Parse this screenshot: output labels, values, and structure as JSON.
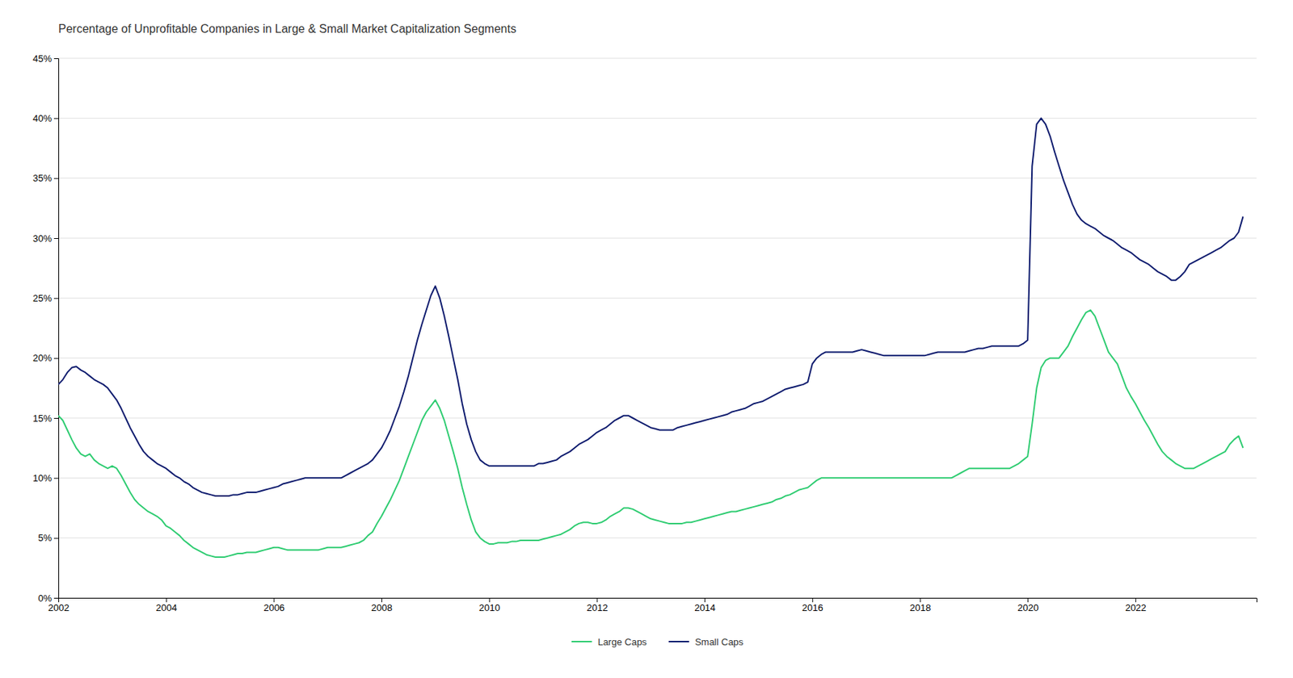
{
  "chart_data": {
    "type": "line",
    "title": "Percentage of Unprofitable Companies in Large & Small Market Capitalization Segments",
    "xlim": [
      2002.0,
      2024.25
    ],
    "xticks": [
      2002,
      2004,
      2006,
      2008,
      2010,
      2012,
      2014,
      2016,
      2018,
      2020,
      2022
    ],
    "ylim": [
      0,
      0.45
    ],
    "yticks": [
      {
        "value": 0,
        "label": "0%"
      },
      {
        "value": 0.05,
        "label": "5%"
      },
      {
        "value": 0.1,
        "label": "10%"
      },
      {
        "value": 0.15,
        "label": "15%"
      },
      {
        "value": 0.2,
        "label": "20%"
      },
      {
        "value": 0.25,
        "label": "25%"
      },
      {
        "value": 0.3,
        "label": "30%"
      },
      {
        "value": 0.35,
        "label": "35%"
      },
      {
        "value": 0.4,
        "label": "40%"
      },
      {
        "value": 0.45,
        "label": "45%"
      }
    ],
    "grid": true,
    "legend": "bottom",
    "x": [
      2002.0,
      2002.083,
      2002.167,
      2002.25,
      2002.333,
      2002.417,
      2002.5,
      2002.583,
      2002.667,
      2002.75,
      2002.833,
      2002.917,
      2003.0,
      2003.083,
      2003.167,
      2003.25,
      2003.333,
      2003.417,
      2003.5,
      2003.583,
      2003.667,
      2003.75,
      2003.833,
      2003.917,
      2004.0,
      2004.083,
      2004.167,
      2004.25,
      2004.333,
      2004.417,
      2004.5,
      2004.583,
      2004.667,
      2004.75,
      2004.833,
      2004.917,
      2005.0,
      2005.083,
      2005.167,
      2005.25,
      2005.333,
      2005.417,
      2005.5,
      2005.583,
      2005.667,
      2005.75,
      2005.833,
      2005.917,
      2006.0,
      2006.083,
      2006.167,
      2006.25,
      2006.333,
      2006.417,
      2006.5,
      2006.583,
      2006.667,
      2006.75,
      2006.833,
      2006.917,
      2007.0,
      2007.083,
      2007.167,
      2007.25,
      2007.333,
      2007.417,
      2007.5,
      2007.583,
      2007.667,
      2007.75,
      2007.833,
      2007.917,
      2008.0,
      2008.083,
      2008.167,
      2008.25,
      2008.333,
      2008.417,
      2008.5,
      2008.583,
      2008.667,
      2008.75,
      2008.833,
      2008.917,
      2009.0,
      2009.083,
      2009.167,
      2009.25,
      2009.333,
      2009.417,
      2009.5,
      2009.583,
      2009.667,
      2009.75,
      2009.833,
      2009.917,
      2010.0,
      2010.083,
      2010.167,
      2010.25,
      2010.333,
      2010.417,
      2010.5,
      2010.583,
      2010.667,
      2010.75,
      2010.833,
      2010.917,
      2011.0,
      2011.083,
      2011.167,
      2011.25,
      2011.333,
      2011.417,
      2011.5,
      2011.583,
      2011.667,
      2011.75,
      2011.833,
      2011.917,
      2012.0,
      2012.083,
      2012.167,
      2012.25,
      2012.333,
      2012.417,
      2012.5,
      2012.583,
      2012.667,
      2012.75,
      2012.833,
      2012.917,
      2013.0,
      2013.083,
      2013.167,
      2013.25,
      2013.333,
      2013.417,
      2013.5,
      2013.583,
      2013.667,
      2013.75,
      2013.833,
      2013.917,
      2014.0,
      2014.083,
      2014.167,
      2014.25,
      2014.333,
      2014.417,
      2014.5,
      2014.583,
      2014.667,
      2014.75,
      2014.833,
      2014.917,
      2015.0,
      2015.083,
      2015.167,
      2015.25,
      2015.333,
      2015.417,
      2015.5,
      2015.583,
      2015.667,
      2015.75,
      2015.833,
      2015.917,
      2016.0,
      2016.083,
      2016.167,
      2016.25,
      2016.333,
      2016.417,
      2016.5,
      2016.583,
      2016.667,
      2016.75,
      2016.833,
      2016.917,
      2017.0,
      2017.083,
      2017.167,
      2017.25,
      2017.333,
      2017.417,
      2017.5,
      2017.583,
      2017.667,
      2017.75,
      2017.833,
      2017.917,
      2018.0,
      2018.083,
      2018.167,
      2018.25,
      2018.333,
      2018.417,
      2018.5,
      2018.583,
      2018.667,
      2018.75,
      2018.833,
      2018.917,
      2019.0,
      2019.083,
      2019.167,
      2019.25,
      2019.333,
      2019.417,
      2019.5,
      2019.583,
      2019.667,
      2019.75,
      2019.833,
      2019.917,
      2020.0,
      2020.083,
      2020.167,
      2020.25,
      2020.333,
      2020.417,
      2020.5,
      2020.583,
      2020.667,
      2020.75,
      2020.833,
      2020.917,
      2021.0,
      2021.083,
      2021.167,
      2021.25,
      2021.333,
      2021.417,
      2021.5,
      2021.583,
      2021.667,
      2021.75,
      2021.833,
      2021.917,
      2022.0,
      2022.083,
      2022.167,
      2022.25,
      2022.333,
      2022.417,
      2022.5,
      2022.583,
      2022.667,
      2022.75,
      2022.833,
      2022.917,
      2023.0,
      2023.083,
      2023.167,
      2023.25,
      2023.333,
      2023.417,
      2023.5,
      2023.583,
      2023.667,
      2023.75,
      2023.833,
      2023.917,
      2024.0
    ],
    "series": [
      {
        "name": "Large Caps",
        "color": "#2ecc71",
        "values": [
          0.152,
          0.148,
          0.14,
          0.132,
          0.125,
          0.12,
          0.118,
          0.12,
          0.115,
          0.112,
          0.11,
          0.108,
          0.11,
          0.108,
          0.102,
          0.095,
          0.088,
          0.082,
          0.078,
          0.075,
          0.072,
          0.07,
          0.068,
          0.065,
          0.06,
          0.058,
          0.055,
          0.052,
          0.048,
          0.045,
          0.042,
          0.04,
          0.038,
          0.036,
          0.035,
          0.034,
          0.034,
          0.034,
          0.035,
          0.036,
          0.037,
          0.037,
          0.038,
          0.038,
          0.038,
          0.039,
          0.04,
          0.041,
          0.042,
          0.042,
          0.041,
          0.04,
          0.04,
          0.04,
          0.04,
          0.04,
          0.04,
          0.04,
          0.04,
          0.041,
          0.042,
          0.042,
          0.042,
          0.042,
          0.043,
          0.044,
          0.045,
          0.046,
          0.048,
          0.052,
          0.055,
          0.062,
          0.068,
          0.075,
          0.082,
          0.09,
          0.098,
          0.108,
          0.118,
          0.128,
          0.138,
          0.148,
          0.155,
          0.16,
          0.165,
          0.158,
          0.148,
          0.135,
          0.122,
          0.108,
          0.092,
          0.078,
          0.065,
          0.055,
          0.05,
          0.047,
          0.045,
          0.045,
          0.046,
          0.046,
          0.046,
          0.047,
          0.047,
          0.048,
          0.048,
          0.048,
          0.048,
          0.048,
          0.049,
          0.05,
          0.051,
          0.052,
          0.053,
          0.055,
          0.057,
          0.06,
          0.062,
          0.063,
          0.063,
          0.062,
          0.062,
          0.063,
          0.065,
          0.068,
          0.07,
          0.072,
          0.075,
          0.075,
          0.074,
          0.072,
          0.07,
          0.068,
          0.066,
          0.065,
          0.064,
          0.063,
          0.062,
          0.062,
          0.062,
          0.062,
          0.063,
          0.063,
          0.064,
          0.065,
          0.066,
          0.067,
          0.068,
          0.069,
          0.07,
          0.071,
          0.072,
          0.072,
          0.073,
          0.074,
          0.075,
          0.076,
          0.077,
          0.078,
          0.079,
          0.08,
          0.082,
          0.083,
          0.085,
          0.086,
          0.088,
          0.09,
          0.091,
          0.092,
          0.095,
          0.098,
          0.1,
          0.1,
          0.1,
          0.1,
          0.1,
          0.1,
          0.1,
          0.1,
          0.1,
          0.1,
          0.1,
          0.1,
          0.1,
          0.1,
          0.1,
          0.1,
          0.1,
          0.1,
          0.1,
          0.1,
          0.1,
          0.1,
          0.1,
          0.1,
          0.1,
          0.1,
          0.1,
          0.1,
          0.1,
          0.1,
          0.102,
          0.104,
          0.106,
          0.108,
          0.108,
          0.108,
          0.108,
          0.108,
          0.108,
          0.108,
          0.108,
          0.108,
          0.108,
          0.11,
          0.112,
          0.115,
          0.118,
          0.145,
          0.175,
          0.192,
          0.198,
          0.2,
          0.2,
          0.2,
          0.205,
          0.21,
          0.218,
          0.225,
          0.232,
          0.238,
          0.24,
          0.235,
          0.225,
          0.215,
          0.205,
          0.2,
          0.195,
          0.185,
          0.175,
          0.168,
          0.162,
          0.155,
          0.148,
          0.142,
          0.135,
          0.128,
          0.122,
          0.118,
          0.115,
          0.112,
          0.11,
          0.108,
          0.108,
          0.108,
          0.11,
          0.112,
          0.114,
          0.116,
          0.118,
          0.12,
          0.122,
          0.128,
          0.132,
          0.135,
          0.125
        ]
      },
      {
        "name": "Small Caps",
        "color": "#0d1b6e",
        "values": [
          0.178,
          0.182,
          0.188,
          0.192,
          0.193,
          0.19,
          0.188,
          0.185,
          0.182,
          0.18,
          0.178,
          0.175,
          0.17,
          0.165,
          0.158,
          0.15,
          0.142,
          0.135,
          0.128,
          0.122,
          0.118,
          0.115,
          0.112,
          0.11,
          0.108,
          0.105,
          0.102,
          0.1,
          0.097,
          0.095,
          0.092,
          0.09,
          0.088,
          0.087,
          0.086,
          0.085,
          0.085,
          0.085,
          0.085,
          0.086,
          0.086,
          0.087,
          0.088,
          0.088,
          0.088,
          0.089,
          0.09,
          0.091,
          0.092,
          0.093,
          0.095,
          0.096,
          0.097,
          0.098,
          0.099,
          0.1,
          0.1,
          0.1,
          0.1,
          0.1,
          0.1,
          0.1,
          0.1,
          0.1,
          0.102,
          0.104,
          0.106,
          0.108,
          0.11,
          0.112,
          0.115,
          0.12,
          0.125,
          0.132,
          0.14,
          0.15,
          0.16,
          0.172,
          0.185,
          0.2,
          0.215,
          0.228,
          0.24,
          0.252,
          0.26,
          0.25,
          0.235,
          0.218,
          0.2,
          0.182,
          0.162,
          0.145,
          0.132,
          0.122,
          0.115,
          0.112,
          0.11,
          0.11,
          0.11,
          0.11,
          0.11,
          0.11,
          0.11,
          0.11,
          0.11,
          0.11,
          0.11,
          0.112,
          0.112,
          0.113,
          0.114,
          0.115,
          0.118,
          0.12,
          0.122,
          0.125,
          0.128,
          0.13,
          0.132,
          0.135,
          0.138,
          0.14,
          0.142,
          0.145,
          0.148,
          0.15,
          0.152,
          0.152,
          0.15,
          0.148,
          0.146,
          0.144,
          0.142,
          0.141,
          0.14,
          0.14,
          0.14,
          0.14,
          0.142,
          0.143,
          0.144,
          0.145,
          0.146,
          0.147,
          0.148,
          0.149,
          0.15,
          0.151,
          0.152,
          0.153,
          0.155,
          0.156,
          0.157,
          0.158,
          0.16,
          0.162,
          0.163,
          0.164,
          0.166,
          0.168,
          0.17,
          0.172,
          0.174,
          0.175,
          0.176,
          0.177,
          0.178,
          0.18,
          0.195,
          0.2,
          0.203,
          0.205,
          0.205,
          0.205,
          0.205,
          0.205,
          0.205,
          0.205,
          0.206,
          0.207,
          0.206,
          0.205,
          0.204,
          0.203,
          0.202,
          0.202,
          0.202,
          0.202,
          0.202,
          0.202,
          0.202,
          0.202,
          0.202,
          0.202,
          0.203,
          0.204,
          0.205,
          0.205,
          0.205,
          0.205,
          0.205,
          0.205,
          0.205,
          0.206,
          0.207,
          0.208,
          0.208,
          0.209,
          0.21,
          0.21,
          0.21,
          0.21,
          0.21,
          0.21,
          0.21,
          0.212,
          0.215,
          0.36,
          0.395,
          0.4,
          0.395,
          0.385,
          0.372,
          0.36,
          0.348,
          0.338,
          0.328,
          0.32,
          0.315,
          0.312,
          0.31,
          0.308,
          0.305,
          0.302,
          0.3,
          0.298,
          0.295,
          0.292,
          0.29,
          0.288,
          0.285,
          0.282,
          0.28,
          0.278,
          0.275,
          0.272,
          0.27,
          0.268,
          0.265,
          0.265,
          0.268,
          0.272,
          0.278,
          0.28,
          0.282,
          0.284,
          0.286,
          0.288,
          0.29,
          0.292,
          0.295,
          0.298,
          0.3,
          0.305,
          0.318
        ]
      }
    ]
  }
}
